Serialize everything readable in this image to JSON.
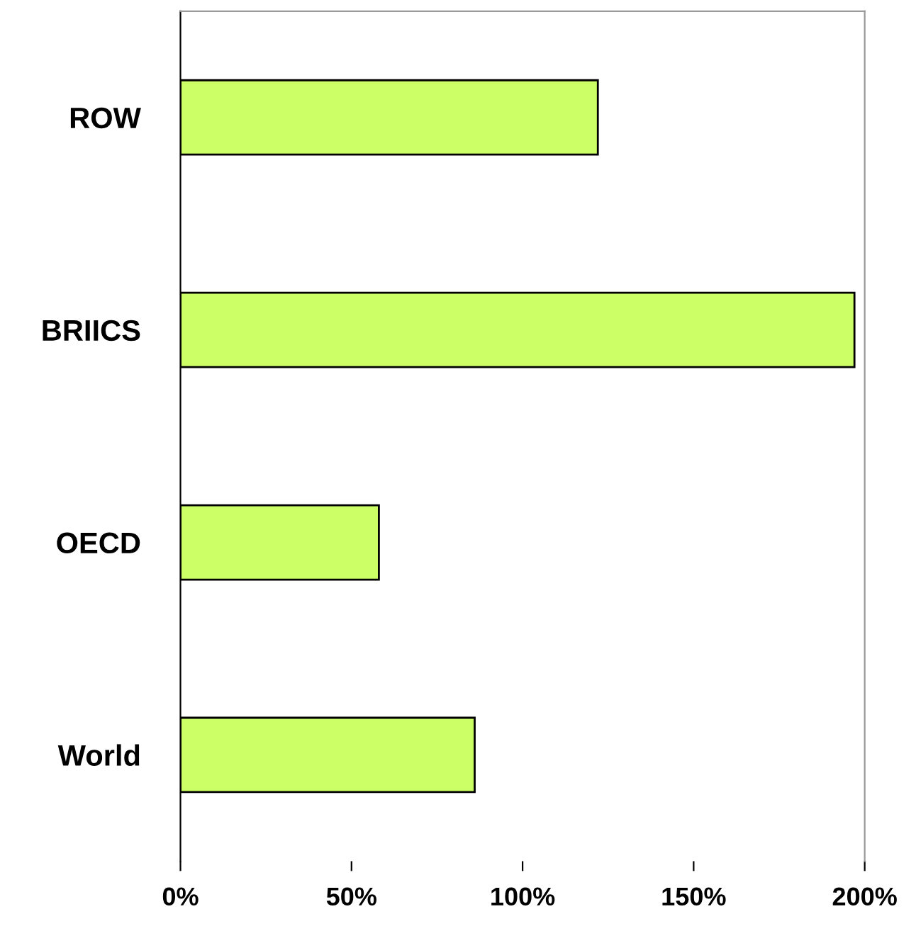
{
  "chart_data": {
    "type": "bar",
    "orientation": "horizontal",
    "categories": [
      "ROW",
      "BRIICS",
      "OECD",
      "World"
    ],
    "values": [
      122,
      197,
      58,
      86
    ],
    "color": "#ccff66",
    "xlim": [
      0,
      200
    ],
    "xticks": [
      {
        "value": 0,
        "label": "0%"
      },
      {
        "value": 50,
        "label": "50%"
      },
      {
        "value": 100,
        "label": "100%"
      },
      {
        "value": 150,
        "label": "150%"
      },
      {
        "value": 200,
        "label": "200%"
      }
    ],
    "grid": false,
    "legend": false
  }
}
